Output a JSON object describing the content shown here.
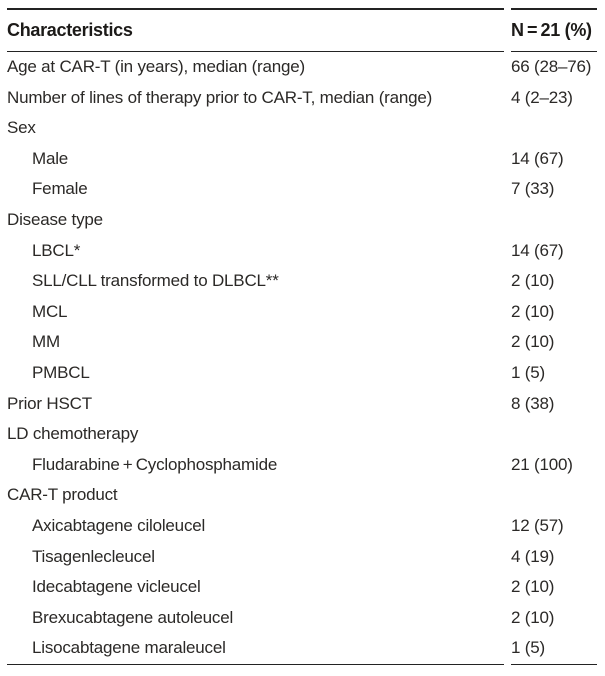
{
  "table": {
    "header": {
      "characteristics": "Characteristics",
      "value": "N = 21 (%)"
    },
    "rows": [
      {
        "label": "Age at CAR-T (in years), median (range)",
        "value": "66 (28–76)",
        "indent": false
      },
      {
        "label": "Number of lines of therapy prior to CAR-T, median (range)",
        "value": "4 (2–23)",
        "indent": false
      },
      {
        "label": "Sex",
        "value": "",
        "indent": false
      },
      {
        "label": "Male",
        "value": "14 (67)",
        "indent": true
      },
      {
        "label": "Female",
        "value": "7 (33)",
        "indent": true
      },
      {
        "label": "Disease type",
        "value": "",
        "indent": false
      },
      {
        "label": "LBCL*",
        "value": "14 (67)",
        "indent": true
      },
      {
        "label": "SLL/CLL transformed to DLBCL**",
        "value": "2 (10)",
        "indent": true
      },
      {
        "label": "MCL",
        "value": "2 (10)",
        "indent": true
      },
      {
        "label": "MM",
        "value": "2 (10)",
        "indent": true
      },
      {
        "label": "PMBCL",
        "value": "1 (5)",
        "indent": true
      },
      {
        "label": "Prior HSCT",
        "value": "8 (38)",
        "indent": false
      },
      {
        "label": "LD chemotherapy",
        "value": "",
        "indent": false
      },
      {
        "label": "Fludarabine + Cyclophosphamide",
        "value": "21 (100)",
        "indent": true
      },
      {
        "label": "CAR-T product",
        "value": "",
        "indent": false
      },
      {
        "label": "Axicabtagene ciloleucel",
        "value": "12 (57)",
        "indent": true
      },
      {
        "label": "Tisagenlecleucel",
        "value": "4 (19)",
        "indent": true
      },
      {
        "label": "Idecabtagene vicleucel",
        "value": "2 (10)",
        "indent": true
      },
      {
        "label": "Brexucabtagene autoleucel",
        "value": "2 (10)",
        "indent": true
      },
      {
        "label": "Lisocabtagene maraleucel",
        "value": "1 (5)",
        "indent": true
      }
    ]
  },
  "colors": {
    "text": "#2b2927",
    "header_text": "#1c1a18",
    "rule": "#232323",
    "background": "#ffffff"
  }
}
